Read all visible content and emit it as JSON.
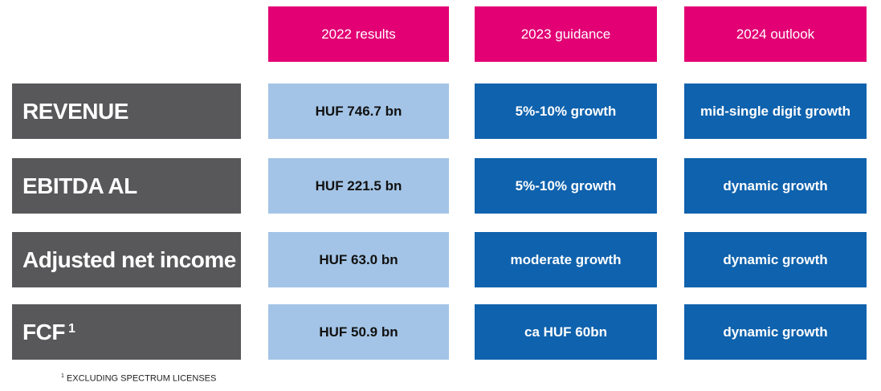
{
  "table": {
    "columns": [
      "2022 results",
      "2023 guidance",
      "2024 outlook"
    ],
    "rows": [
      {
        "label": "REVENUE",
        "cells": [
          "HUF 746.7 bn",
          "5%-10% growth",
          "mid-single digit growth"
        ]
      },
      {
        "label": "EBITDA AL",
        "cells": [
          "HUF 221.5 bn",
          "5%-10% growth",
          "dynamic growth"
        ]
      },
      {
        "label": "Adjusted net income",
        "cells": [
          "HUF 63.0 bn",
          "moderate growth",
          "dynamic growth"
        ]
      },
      {
        "label": "FCF",
        "sup": "1",
        "cells": [
          "HUF 50.9 bn",
          "ca HUF 60bn",
          "dynamic growth"
        ]
      }
    ]
  },
  "footnote": {
    "marker": "1",
    "text": "EXCLUDING SPECTRUM LICENSES"
  }
}
